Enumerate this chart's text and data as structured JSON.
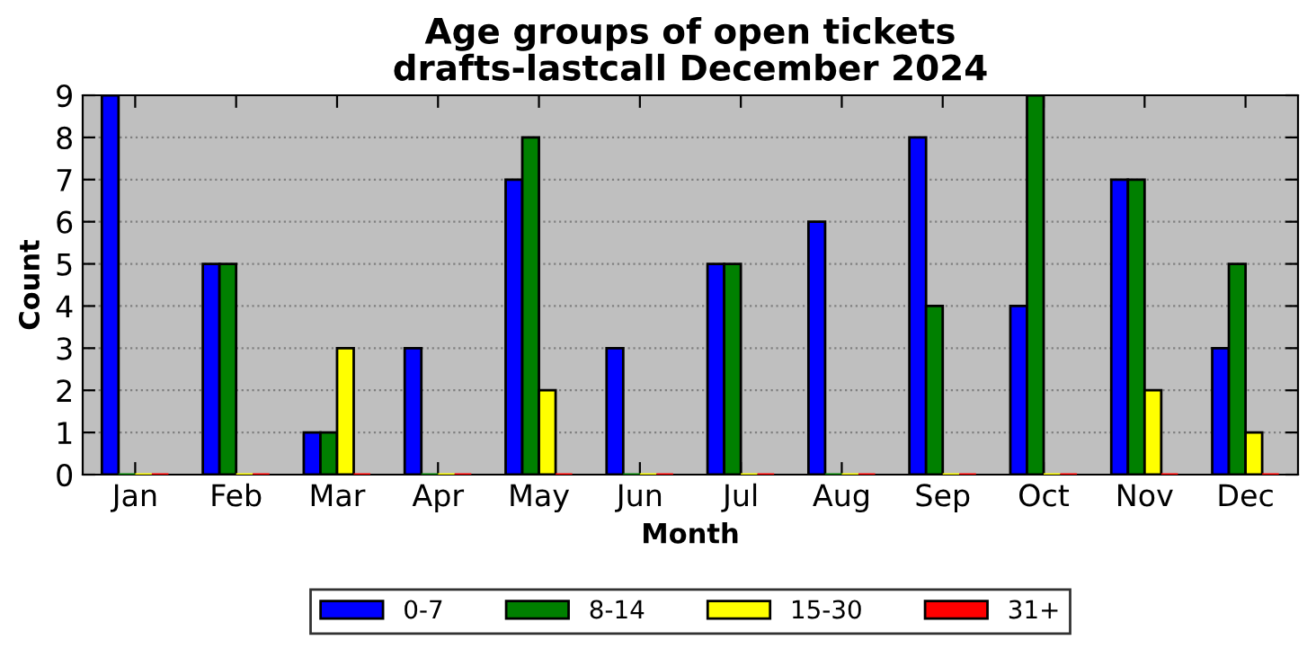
{
  "chart_data": {
    "type": "bar",
    "title": "Age groups of open tickets\ndrafts-lastcall December 2024",
    "xlabel": "Month",
    "ylabel": "Count",
    "categories": [
      "Jan",
      "Feb",
      "Mar",
      "Apr",
      "May",
      "Jun",
      "Jul",
      "Aug",
      "Sep",
      "Oct",
      "Nov",
      "Dec"
    ],
    "series": [
      {
        "name": "0-7",
        "color": "#0000ff",
        "values": [
          9,
          5,
          1,
          3,
          7,
          3,
          5,
          6,
          8,
          4,
          7,
          3
        ]
      },
      {
        "name": "8-14",
        "color": "#008000",
        "values": [
          0,
          5,
          1,
          0,
          8,
          0,
          5,
          0,
          4,
          9,
          7,
          5
        ]
      },
      {
        "name": "15-30",
        "color": "#ffff00",
        "values": [
          0,
          0,
          3,
          0,
          2,
          0,
          0,
          0,
          0,
          0,
          2,
          1
        ]
      },
      {
        "name": "31+",
        "color": "#ff0000",
        "values": [
          0,
          0,
          0,
          0,
          0,
          0,
          0,
          0,
          0,
          0,
          0,
          0
        ]
      }
    ],
    "ylim": [
      0,
      9
    ],
    "yticks": [
      0,
      1,
      2,
      3,
      4,
      5,
      6,
      7,
      8,
      9
    ],
    "grid": "y",
    "legend": "bottom"
  }
}
